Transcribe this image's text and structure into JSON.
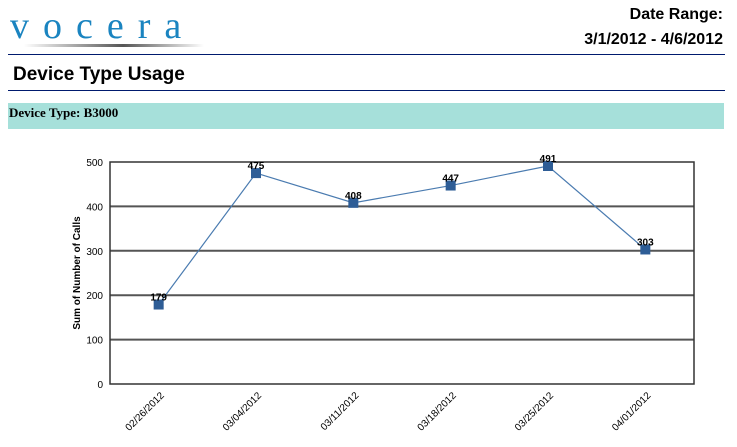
{
  "header": {
    "logo": "vocera",
    "date_range_label": "Date Range:",
    "date_range_value": "3/1/2012 - 4/6/2012"
  },
  "report": {
    "title": "Device Type Usage",
    "group_label": "Device Type: B3000"
  },
  "colors": {
    "band": "#a6e0da",
    "series": "#2e5d96",
    "line": "#4a7bb0",
    "rule": "#001a6e"
  },
  "chart_data": {
    "type": "line",
    "title": "",
    "xlabel": "",
    "ylabel": "Sum of Number of Calls",
    "categories": [
      "02/26/2012",
      "03/04/2012",
      "03/11/2012",
      "03/18/2012",
      "03/25/2012",
      "04/01/2012"
    ],
    "series": [
      {
        "name": "B3000",
        "values": [
          179,
          475,
          408,
          447,
          491,
          303
        ]
      }
    ],
    "ylim": [
      0,
      500
    ],
    "yticks": [
      0,
      100,
      200,
      300,
      400,
      500
    ],
    "grid": true,
    "legend": "none",
    "data_labels": true
  }
}
